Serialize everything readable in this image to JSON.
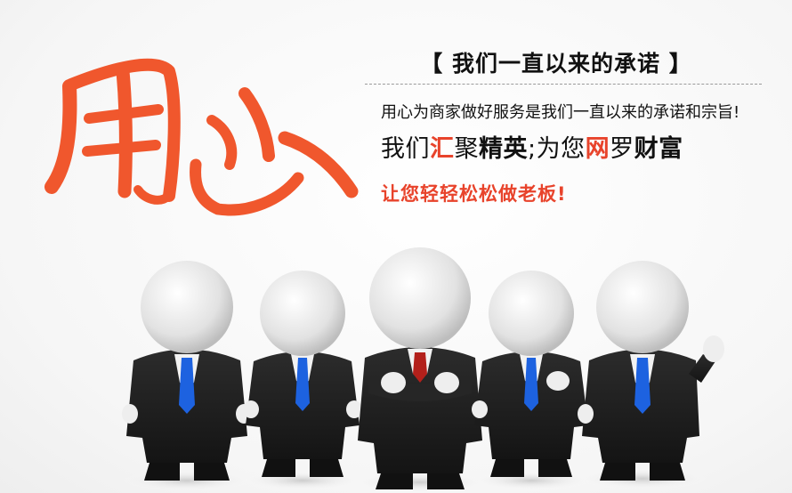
{
  "calligraphy": {
    "text": "用心",
    "color": "#f0572d"
  },
  "heading": {
    "text": "【 我们一直以来的承诺 】"
  },
  "slogan": {
    "line1": "用心为商家做好服务是我们一直以来的承诺和宗旨!",
    "line2_parts": [
      "我们",
      "汇",
      "聚",
      "精英",
      ";为您",
      "网",
      "罗",
      "财富"
    ],
    "line3": "让您轻轻松松做老板!",
    "accent_color": "#e8432b"
  },
  "figures": {
    "count": 5,
    "suit_color": "#1e1e1e",
    "tie_colors": [
      "#1d62e0",
      "#1d62e0",
      "#b3201b",
      "#1d62e0",
      "#1d62e0"
    ]
  }
}
